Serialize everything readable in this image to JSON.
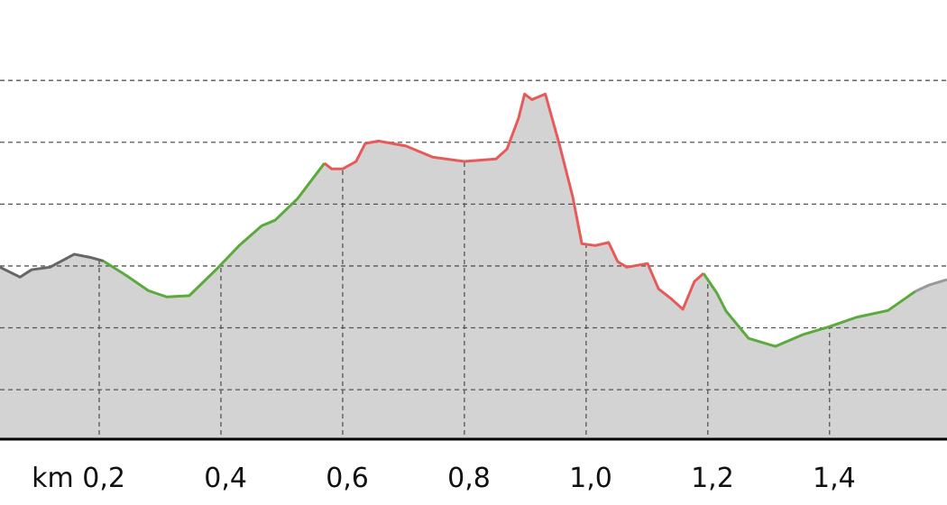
{
  "chart_data": {
    "type": "line",
    "xlim": [
      0.037,
      1.593
    ],
    "xticks": [
      {
        "value": 0.2,
        "label": "km 0,2"
      },
      {
        "value": 0.4,
        "label": "0,4"
      },
      {
        "value": 0.6,
        "label": "0,6"
      },
      {
        "value": 0.8,
        "label": "0,8"
      },
      {
        "value": 1.0,
        "label": "1,0"
      },
      {
        "value": 1.2,
        "label": "1,2"
      },
      {
        "value": 1.4,
        "label": "1,4"
      }
    ],
    "ylim": [
      0.2,
      7.3
    ],
    "yticks": [
      1,
      2,
      3,
      4,
      5,
      6
    ],
    "grid": true,
    "fill_color": "#d3d3d3",
    "series": [
      {
        "color": "#666666",
        "x": [
          0.037,
          0.07,
          0.089,
          0.119,
          0.159,
          0.185,
          0.207
        ],
        "values": [
          2.98,
          2.82,
          2.94,
          2.98,
          3.19,
          3.14,
          3.08
        ]
      },
      {
        "color": "#5aaa3c",
        "x": [
          0.207,
          0.244,
          0.281,
          0.311,
          0.348,
          0.393,
          0.43,
          0.467,
          0.489,
          0.526,
          0.57
        ],
        "values": [
          3.08,
          2.85,
          2.6,
          2.5,
          2.52,
          2.95,
          3.33,
          3.65,
          3.74,
          4.09,
          4.66
        ]
      },
      {
        "color": "#e85a5a",
        "x": [
          0.57,
          0.582,
          0.6,
          0.622,
          0.637,
          0.659,
          0.704,
          0.748,
          0.8,
          0.852,
          0.87,
          0.889,
          0.899,
          0.911,
          0.933,
          0.956,
          0.978,
          0.993,
          1.015,
          1.037,
          1.052,
          1.067,
          1.101,
          1.119,
          1.141,
          1.159,
          1.178,
          1.193
        ],
        "values": [
          4.66,
          4.57,
          4.57,
          4.69,
          4.98,
          5.02,
          4.94,
          4.76,
          4.69,
          4.73,
          4.89,
          5.39,
          5.78,
          5.69,
          5.78,
          4.97,
          4.12,
          3.36,
          3.33,
          3.38,
          3.07,
          2.98,
          3.04,
          2.63,
          2.46,
          2.3,
          2.75,
          2.88
        ]
      },
      {
        "color": "#5aaa3c",
        "x": [
          1.193,
          1.215,
          1.23,
          1.267,
          1.311,
          1.356,
          1.4,
          1.444,
          1.496,
          1.541
        ],
        "values": [
          2.88,
          2.56,
          2.27,
          1.83,
          1.7,
          1.89,
          2.02,
          2.17,
          2.28,
          2.59
        ]
      },
      {
        "color": "#999999",
        "x": [
          1.541,
          1.563,
          1.593
        ],
        "values": [
          2.59,
          2.69,
          2.78
        ]
      }
    ]
  }
}
